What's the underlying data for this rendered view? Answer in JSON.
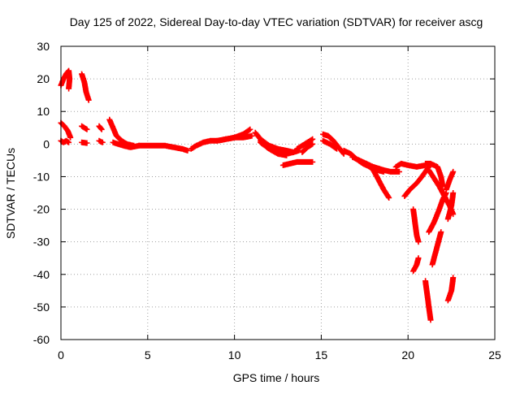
{
  "chart_data": {
    "type": "scatter",
    "title": "Day 125 of 2022, Sidereal Day-to-day VTEC variation (SDTVAR) for receiver ascg",
    "xlabel": "GPS time / hours",
    "ylabel": "SDTVAR / TECUs",
    "xlim": [
      0,
      25
    ],
    "ylim": [
      -60,
      30
    ],
    "xticks": [
      0,
      5,
      10,
      15,
      20,
      25
    ],
    "yticks": [
      -60,
      -50,
      -40,
      -30,
      -20,
      -10,
      0,
      10,
      20,
      30
    ],
    "grid": true,
    "marker": "+",
    "color": "#ff0000",
    "series": [
      {
        "name": "SDTVAR",
        "tracks": [
          [
            [
              0.0,
              18
            ],
            [
              0.15,
              20
            ],
            [
              0.3,
              21.5
            ],
            [
              0.45,
              22.5
            ],
            [
              0.5,
              20
            ],
            [
              0.45,
              17
            ]
          ],
          [
            [
              0.0,
              1
            ],
            [
              0.15,
              0.5
            ],
            [
              0.3,
              1
            ],
            [
              0.45,
              0.5
            ]
          ],
          [
            [
              0.0,
              6.5
            ],
            [
              0.2,
              5.5
            ],
            [
              0.4,
              4
            ],
            [
              0.55,
              2
            ]
          ],
          [
            [
              1.2,
              21.5
            ],
            [
              1.35,
              19
            ],
            [
              1.45,
              16
            ],
            [
              1.6,
              13.5
            ]
          ],
          [
            [
              1.2,
              5.5
            ],
            [
              1.5,
              4.5
            ]
          ],
          [
            [
              1.2,
              0.5
            ],
            [
              1.5,
              0.3
            ]
          ],
          [
            [
              2.2,
              5.5
            ],
            [
              2.35,
              4.5
            ]
          ],
          [
            [
              2.2,
              1
            ],
            [
              2.4,
              0.5
            ]
          ],
          [
            [
              2.8,
              7.5
            ],
            [
              3.0,
              5
            ],
            [
              3.2,
              2.5
            ],
            [
              3.5,
              1
            ],
            [
              3.8,
              0
            ],
            [
              4.2,
              -0.5
            ]
          ],
          [
            [
              3.0,
              0.5
            ],
            [
              3.6,
              -0.5
            ],
            [
              4.0,
              -1
            ],
            [
              4.5,
              -0.5
            ]
          ],
          [
            [
              4.5,
              -0.5
            ],
            [
              5.0,
              -0.5
            ],
            [
              5.5,
              -0.5
            ],
            [
              6.0,
              -0.5
            ],
            [
              6.5,
              -1
            ],
            [
              7.0,
              -1.5
            ],
            [
              7.3,
              -2
            ]
          ],
          [
            [
              7.5,
              -1.5
            ],
            [
              7.8,
              -0.5
            ],
            [
              8.2,
              0.5
            ],
            [
              8.6,
              1
            ],
            [
              9.0,
              1
            ],
            [
              9.5,
              1.5
            ],
            [
              10.0,
              2
            ],
            [
              10.5,
              3
            ],
            [
              10.9,
              4.5
            ]
          ],
          [
            [
              9.0,
              1
            ],
            [
              9.5,
              1.5
            ],
            [
              10.0,
              2
            ],
            [
              10.5,
              2
            ],
            [
              11.0,
              2.5
            ]
          ],
          [
            [
              11.2,
              3.5
            ],
            [
              11.5,
              1.5
            ],
            [
              12.0,
              -0.5
            ],
            [
              12.5,
              -1.5
            ],
            [
              13.0,
              -2
            ],
            [
              13.4,
              -2.5
            ],
            [
              13.7,
              -2
            ]
          ],
          [
            [
              11.5,
              1
            ],
            [
              12.0,
              -1
            ],
            [
              12.5,
              -2.5
            ],
            [
              13.0,
              -3
            ],
            [
              13.4,
              -2.5
            ]
          ],
          [
            [
              11.5,
              0.5
            ],
            [
              12.0,
              -1.5
            ],
            [
              12.5,
              -3
            ],
            [
              13.0,
              -3.5
            ]
          ],
          [
            [
              12.8,
              -6.5
            ],
            [
              13.2,
              -6
            ],
            [
              13.6,
              -5.5
            ],
            [
              14.0,
              -5.5
            ],
            [
              14.5,
              -5.5
            ]
          ],
          [
            [
              13.6,
              -1.5
            ],
            [
              13.9,
              -0.5
            ],
            [
              14.2,
              0.5
            ],
            [
              14.5,
              1.5
            ]
          ],
          [
            [
              13.9,
              -2.5
            ],
            [
              14.2,
              -1
            ],
            [
              14.5,
              0
            ]
          ],
          [
            [
              15.1,
              3
            ],
            [
              15.4,
              2.5
            ],
            [
              15.7,
              1
            ],
            [
              16.0,
              -1
            ],
            [
              16.3,
              -3
            ]
          ],
          [
            [
              15.1,
              1
            ],
            [
              15.5,
              0
            ],
            [
              15.9,
              -1.5
            ]
          ],
          [
            [
              16.3,
              -2
            ],
            [
              16.7,
              -3
            ],
            [
              17.0,
              -4.5
            ],
            [
              17.4,
              -6
            ],
            [
              17.8,
              -7
            ],
            [
              18.2,
              -8
            ],
            [
              18.6,
              -8.5
            ]
          ],
          [
            [
              16.8,
              -4
            ],
            [
              17.2,
              -5
            ],
            [
              17.6,
              -6
            ],
            [
              18.0,
              -8
            ],
            [
              18.3,
              -11
            ],
            [
              18.6,
              -14
            ],
            [
              18.9,
              -16.5
            ]
          ],
          [
            [
              17.6,
              -6
            ],
            [
              18.0,
              -7
            ],
            [
              18.3,
              -7.5
            ],
            [
              18.6,
              -8
            ],
            [
              19.0,
              -8.5
            ],
            [
              19.5,
              -8.5
            ]
          ],
          [
            [
              19.3,
              -7
            ],
            [
              19.6,
              -6
            ],
            [
              20.0,
              -6.5
            ],
            [
              20.5,
              -7
            ],
            [
              21.0,
              -6.5
            ]
          ],
          [
            [
              19.8,
              -16
            ],
            [
              20.1,
              -14
            ],
            [
              20.5,
              -12
            ],
            [
              20.8,
              -10
            ],
            [
              21.0,
              -8.5
            ],
            [
              21.2,
              -7
            ]
          ],
          [
            [
              20.3,
              -20
            ],
            [
              20.4,
              -24
            ],
            [
              20.5,
              -28
            ],
            [
              20.6,
              -30
            ]
          ],
          [
            [
              20.3,
              -39
            ],
            [
              20.5,
              -37
            ],
            [
              20.6,
              -35
            ]
          ],
          [
            [
              21.0,
              -6
            ],
            [
              21.3,
              -6
            ],
            [
              21.7,
              -7
            ],
            [
              21.9,
              -10
            ],
            [
              22.0,
              -13
            ]
          ],
          [
            [
              21.2,
              -8
            ],
            [
              21.5,
              -10.5
            ],
            [
              21.8,
              -13
            ],
            [
              22.1,
              -16
            ],
            [
              22.4,
              -19
            ],
            [
              22.6,
              -21.5
            ]
          ],
          [
            [
              21.2,
              -27
            ],
            [
              21.5,
              -24
            ],
            [
              21.8,
              -20
            ],
            [
              22.0,
              -17
            ],
            [
              22.2,
              -15
            ]
          ],
          [
            [
              21.4,
              -37
            ],
            [
              21.6,
              -33
            ],
            [
              21.8,
              -29
            ],
            [
              21.9,
              -27
            ]
          ],
          [
            [
              21.0,
              -42
            ],
            [
              21.1,
              -46
            ],
            [
              21.2,
              -50
            ],
            [
              21.3,
              -54
            ]
          ],
          [
            [
              22.2,
              -14
            ],
            [
              22.4,
              -11
            ],
            [
              22.6,
              -8.5
            ]
          ],
          [
            [
              22.3,
              -23
            ],
            [
              22.5,
              -19
            ],
            [
              22.6,
              -15
            ]
          ],
          [
            [
              22.3,
              -48
            ],
            [
              22.5,
              -45
            ],
            [
              22.6,
              -41
            ]
          ]
        ]
      }
    ]
  }
}
